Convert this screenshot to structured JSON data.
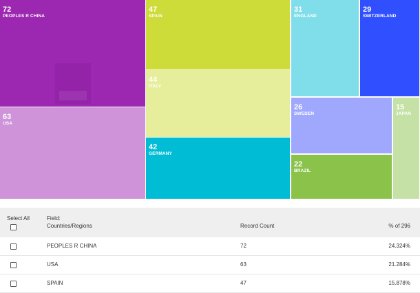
{
  "chart_data": {
    "type": "treemap",
    "title": "",
    "items": [
      {
        "label": "PEOPLES R CHINA",
        "value": 72,
        "color": "#9c27b0"
      },
      {
        "label": "USA",
        "value": 63,
        "color": "#ce93d8"
      },
      {
        "label": "SPAIN",
        "value": 47,
        "color": "#cddc39"
      },
      {
        "label": "ITALY",
        "value": 44,
        "color": "#e6ee9c"
      },
      {
        "label": "GERMANY",
        "value": 42,
        "color": "#00bcd4"
      },
      {
        "label": "ENGLAND",
        "value": 31,
        "color": "#80deea"
      },
      {
        "label": "SWITZERLAND",
        "value": 29,
        "color": "#304ffe"
      },
      {
        "label": "SWEDEN",
        "value": 26,
        "color": "#9fa8fd"
      },
      {
        "label": "BRAZIL",
        "value": 22,
        "color": "#8bc34a"
      },
      {
        "label": "JAPAN",
        "value": 15,
        "color": "#c5e1a5"
      }
    ]
  },
  "table": {
    "select_all_label": "Select All",
    "field_label": "Field:",
    "field_value": "Countries/Regions",
    "count_header": "Record Count",
    "pct_header": "% of 296",
    "rows": [
      {
        "name": "PEOPLES R CHINA",
        "count": "72",
        "pct": "24.324%"
      },
      {
        "name": "USA",
        "count": "63",
        "pct": "21.284%"
      },
      {
        "name": "SPAIN",
        "count": "47",
        "pct": "15.878%"
      }
    ]
  }
}
